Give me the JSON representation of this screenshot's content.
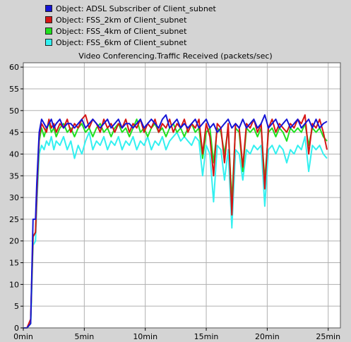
{
  "legend": [
    {
      "label": "Object: ADSL Subscriber of Client_subnet",
      "color": "#1515d6"
    },
    {
      "label": "Object: FSS_2km of Client_subnet",
      "color": "#d61515"
    },
    {
      "label": "Object: FSS_4km of Client_subnet",
      "color": "#1fe01f"
    },
    {
      "label": "Object: FSS_6km of Client_subnet",
      "color": "#33f0f0"
    }
  ],
  "chart_data": {
    "type": "line",
    "title": "Video Conferencing.Traffic Received (packets/sec)",
    "xlabel": "",
    "ylabel": "",
    "xlim": [
      0,
      26
    ],
    "ylim": [
      0,
      61
    ],
    "y_ticks": [
      0,
      5,
      10,
      15,
      20,
      25,
      30,
      35,
      40,
      45,
      50,
      55,
      60
    ],
    "y_tick_labels": [
      "0",
      "5",
      "10",
      "15",
      "20",
      "25",
      "30",
      "35",
      "40",
      "45",
      "50",
      "55",
      "60"
    ],
    "x_ticks": [
      0,
      5,
      10,
      15,
      20,
      25
    ],
    "x_tick_labels": [
      "0min",
      "5min",
      "10min",
      "15min",
      "20min",
      "25min"
    ],
    "grid": true,
    "plot_background": "#ffffff",
    "grid_color": "#b0b0b0",
    "series": [
      {
        "name": "Object: ADSL Subscriber of Client_subnet",
        "color": "#1515d6",
        "x": [
          0.0,
          0.3,
          0.6,
          0.8,
          1.0,
          1.1,
          1.3,
          1.5,
          1.7,
          1.9,
          2.1,
          2.3,
          2.5,
          2.7,
          3.0,
          3.3,
          3.6,
          3.9,
          4.2,
          4.5,
          4.8,
          5.1,
          5.4,
          5.7,
          6.0,
          6.3,
          6.6,
          6.9,
          7.2,
          7.5,
          7.8,
          8.1,
          8.4,
          8.7,
          9.0,
          9.3,
          9.6,
          9.9,
          10.2,
          10.5,
          10.8,
          11.1,
          11.4,
          11.7,
          12.0,
          12.3,
          12.6,
          12.9,
          13.2,
          13.5,
          13.8,
          14.1,
          14.4,
          14.7,
          15.0,
          15.3,
          15.6,
          15.9,
          16.2,
          16.5,
          16.8,
          17.1,
          17.4,
          17.7,
          18.0,
          18.3,
          18.6,
          18.9,
          19.2,
          19.5,
          19.8,
          20.1,
          20.4,
          20.7,
          21.0,
          21.3,
          21.6,
          21.9,
          22.2,
          22.5,
          22.8,
          23.1,
          23.4,
          23.7,
          24.0,
          24.3,
          24.6,
          24.9
        ],
        "values": [
          0,
          0,
          1,
          25,
          25,
          33,
          45,
          48,
          47,
          46,
          47,
          48,
          46,
          47,
          48,
          46,
          47,
          47,
          46,
          47,
          48,
          46,
          47,
          48,
          47,
          46,
          47,
          48,
          46,
          47,
          48,
          46,
          47,
          47,
          46,
          47,
          48,
          46,
          47,
          48,
          47,
          46,
          48,
          49,
          46,
          47,
          48,
          46,
          47,
          46,
          47,
          48,
          46,
          47,
          48,
          46,
          47,
          45,
          46,
          47,
          48,
          46,
          47,
          46,
          48,
          46,
          47,
          48,
          46,
          47,
          49,
          46,
          47,
          48,
          46,
          47,
          48,
          46,
          47,
          48,
          46,
          47,
          48,
          46,
          48,
          46,
          47,
          47.5
        ]
      },
      {
        "name": "Object: FSS_2km of Client_subnet",
        "color": "#d61515",
        "x": [
          0.0,
          0.3,
          0.6,
          0.8,
          1.0,
          1.1,
          1.3,
          1.5,
          1.7,
          1.9,
          2.1,
          2.3,
          2.5,
          2.7,
          3.0,
          3.3,
          3.6,
          3.9,
          4.2,
          4.5,
          4.8,
          5.1,
          5.4,
          5.7,
          6.0,
          6.3,
          6.6,
          6.9,
          7.2,
          7.5,
          7.8,
          8.1,
          8.4,
          8.7,
          9.0,
          9.3,
          9.6,
          9.9,
          10.2,
          10.5,
          10.8,
          11.1,
          11.4,
          11.7,
          12.0,
          12.3,
          12.6,
          12.9,
          13.2,
          13.5,
          13.8,
          14.1,
          14.4,
          14.7,
          15.0,
          15.3,
          15.6,
          15.9,
          16.2,
          16.5,
          16.8,
          17.1,
          17.4,
          17.7,
          18.0,
          18.3,
          18.6,
          18.9,
          19.2,
          19.5,
          19.8,
          20.1,
          20.4,
          20.7,
          21.0,
          21.3,
          21.6,
          21.9,
          22.2,
          22.5,
          22.8,
          23.1,
          23.4,
          23.7,
          24.0,
          24.3,
          24.6,
          24.9
        ],
        "values": [
          0,
          0,
          2,
          21,
          22,
          30,
          44,
          47,
          46,
          45,
          48,
          46,
          47,
          45,
          47,
          46,
          48,
          45,
          47,
          46,
          48,
          49,
          46,
          48,
          47,
          45,
          48,
          46,
          47,
          45,
          47,
          46,
          48,
          45,
          47,
          46,
          48,
          45,
          47,
          46,
          48,
          45,
          47,
          46,
          48,
          45,
          47,
          46,
          48,
          45,
          47,
          46,
          48,
          40,
          47,
          44,
          35,
          47,
          46,
          38,
          47,
          26,
          47,
          46,
          37,
          47,
          46,
          48,
          45,
          47,
          32,
          46,
          48,
          45,
          47,
          46,
          45,
          47,
          46,
          48,
          47,
          49,
          40,
          47,
          46,
          48,
          45,
          41
        ]
      },
      {
        "name": "Object: FSS_4km of Client_subnet",
        "color": "#1fe01f",
        "x": [
          0.0,
          0.3,
          0.6,
          0.8,
          1.0,
          1.1,
          1.3,
          1.5,
          1.7,
          1.9,
          2.1,
          2.3,
          2.5,
          2.7,
          3.0,
          3.3,
          3.6,
          3.9,
          4.2,
          4.5,
          4.8,
          5.1,
          5.4,
          5.7,
          6.0,
          6.3,
          6.6,
          6.9,
          7.2,
          7.5,
          7.8,
          8.1,
          8.4,
          8.7,
          9.0,
          9.3,
          9.6,
          9.9,
          10.2,
          10.5,
          10.8,
          11.1,
          11.4,
          11.7,
          12.0,
          12.3,
          12.6,
          12.9,
          13.2,
          13.5,
          13.8,
          14.1,
          14.4,
          14.7,
          15.0,
          15.3,
          15.6,
          15.9,
          16.2,
          16.5,
          16.8,
          17.1,
          17.4,
          17.7,
          18.0,
          18.3,
          18.6,
          18.9,
          19.2,
          19.5,
          19.8,
          20.1,
          20.4,
          20.7,
          21.0,
          21.3,
          21.6,
          21.9,
          22.2,
          22.5,
          22.8,
          23.1,
          23.4,
          23.7,
          24.0,
          24.3,
          24.6,
          24.9
        ],
        "values": [
          0,
          0,
          1,
          21,
          22,
          30,
          43,
          46,
          44,
          46,
          47,
          45,
          46,
          44,
          46,
          47,
          45,
          46,
          44,
          46,
          47,
          45,
          46,
          44,
          46,
          47,
          45,
          46,
          44,
          46,
          47,
          45,
          46,
          44,
          46,
          48,
          45,
          46,
          44,
          46,
          47,
          45,
          46,
          44,
          46,
          47,
          45,
          46,
          44,
          46,
          47,
          45,
          46,
          39,
          45,
          46,
          38,
          46,
          45,
          40,
          46,
          29,
          46,
          45,
          36,
          46,
          45,
          46,
          44,
          46,
          34,
          45,
          46,
          44,
          46,
          45,
          43,
          46,
          45,
          46,
          45,
          47,
          42,
          46,
          45,
          46,
          44,
          43
        ]
      },
      {
        "name": "Object: FSS_6km of Client_subnet",
        "color": "#33f0f0",
        "x": [
          0.0,
          0.3,
          0.6,
          0.8,
          1.0,
          1.1,
          1.3,
          1.5,
          1.7,
          1.9,
          2.1,
          2.3,
          2.5,
          2.7,
          3.0,
          3.3,
          3.6,
          3.9,
          4.2,
          4.5,
          4.8,
          5.1,
          5.4,
          5.7,
          6.0,
          6.3,
          6.6,
          6.9,
          7.2,
          7.5,
          7.8,
          8.1,
          8.4,
          8.7,
          9.0,
          9.3,
          9.6,
          9.9,
          10.2,
          10.5,
          10.8,
          11.1,
          11.4,
          11.7,
          12.0,
          12.3,
          12.6,
          12.9,
          13.2,
          13.5,
          13.8,
          14.1,
          14.4,
          14.7,
          15.0,
          15.3,
          15.6,
          15.9,
          16.2,
          16.5,
          16.8,
          17.1,
          17.4,
          17.7,
          18.0,
          18.3,
          18.6,
          18.9,
          19.2,
          19.5,
          19.8,
          20.1,
          20.4,
          20.7,
          21.0,
          21.3,
          21.6,
          21.9,
          22.2,
          22.5,
          22.8,
          23.1,
          23.4,
          23.7,
          24.0,
          24.3,
          24.6,
          24.9
        ],
        "values": [
          0,
          0,
          1,
          19,
          20,
          28,
          40,
          42,
          41,
          43,
          42,
          44,
          41,
          43,
          42,
          44,
          41,
          43,
          39,
          42,
          40,
          43,
          45,
          41,
          43,
          42,
          44,
          41,
          43,
          42,
          44,
          41,
          43,
          42,
          44,
          41,
          43,
          42,
          44,
          41,
          43,
          42,
          44,
          41,
          43,
          44,
          45,
          43,
          44,
          43,
          42,
          44,
          43,
          35,
          42,
          40,
          29,
          42,
          41,
          34,
          41,
          23,
          41,
          40,
          34,
          41,
          40,
          42,
          41,
          42,
          28,
          41,
          42,
          40,
          42,
          41,
          38,
          41,
          40,
          42,
          41,
          44,
          36,
          42,
          41,
          42,
          40,
          39
        ]
      }
    ]
  }
}
